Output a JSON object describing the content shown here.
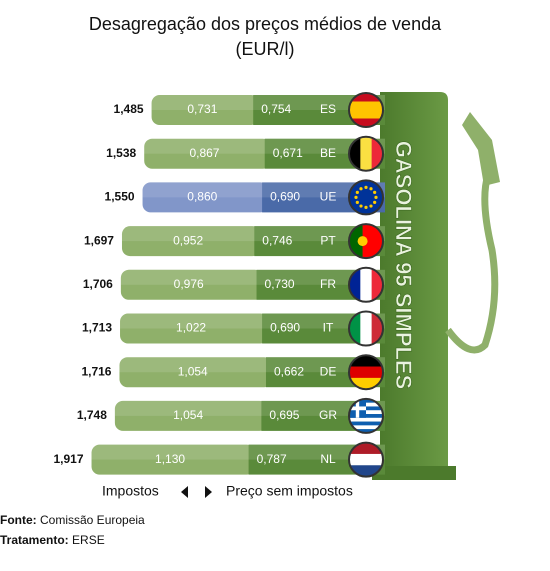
{
  "chart_data": {
    "type": "bar",
    "orientation": "horizontal",
    "stacked": true,
    "title": [
      "Desagregação dos preços médios de venda",
      "(EUR/l)"
    ],
    "categories": [
      "ES",
      "BE",
      "UE",
      "PT",
      "FR",
      "IT",
      "DE",
      "GR",
      "NL"
    ],
    "totals": {
      "values": [
        1.485,
        1.538,
        1.55,
        1.697,
        1.706,
        1.713,
        1.716,
        1.748,
        1.917
      ],
      "value_labels": [
        "1,485",
        "1,538",
        "1,550",
        "1,697",
        "1,706",
        "1,713",
        "1,716",
        "1,748",
        "1,917"
      ]
    },
    "series": [
      {
        "name": "Impostos",
        "color": "#8fb06a",
        "highlight_color": "#8196c9",
        "values": [
          0.731,
          0.867,
          0.86,
          0.952,
          0.976,
          1.022,
          1.054,
          1.054,
          1.13
        ],
        "value_labels": [
          "0,731",
          "0,867",
          "0,860",
          "0,952",
          "0,976",
          "1,022",
          "1,054",
          "1,054",
          "1,130"
        ]
      },
      {
        "name": "Preço sem impostos",
        "color": "#5a8a3a",
        "highlight_color": "#4a6aa8",
        "values": [
          0.754,
          0.671,
          0.69,
          0.746,
          0.73,
          0.69,
          0.662,
          0.695,
          0.787
        ],
        "value_labels": [
          "0,754",
          "0,671",
          "0,690",
          "0,746",
          "0,730",
          "0,690",
          "0,662",
          "0,695",
          "0,787"
        ]
      }
    ],
    "highlight": "UE",
    "product": "GASOLINA 95 SIMPLES",
    "source": [
      {
        "label": "Fonte:",
        "text": "Comissão Europeia"
      },
      {
        "label": "Tratamento:",
        "text": "ERSE"
      }
    ]
  }
}
